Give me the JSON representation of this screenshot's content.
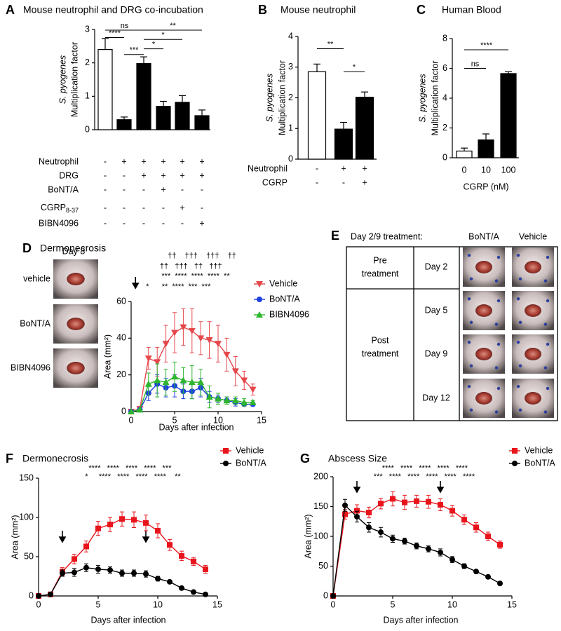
{
  "chart_data": [
    {
      "panel": "A",
      "type": "bar",
      "title": "Mouse neutrophil and DRG co-incubation",
      "ylabel": [
        "S. pyogenes",
        "Multiplication factor"
      ],
      "values": [
        2.4,
        0.3,
        1.98,
        0.7,
        0.82,
        0.42
      ],
      "errors": [
        0.33,
        0.08,
        0.2,
        0.15,
        0.2,
        0.17
      ],
      "colors": [
        "#ffffff",
        "#000000",
        "#000000",
        "#000000",
        "#000000",
        "#000000"
      ],
      "ylim": [
        0,
        3
      ],
      "yticks": [
        0,
        1,
        2,
        3
      ],
      "conditions": [
        {
          "label": "Neutrophil",
          "signs": [
            "-",
            "+",
            "+",
            "+",
            "+",
            "+"
          ]
        },
        {
          "label": "DRG",
          "signs": [
            "-",
            "-",
            "+",
            "+",
            "+",
            "+"
          ]
        },
        {
          "label": "BoNT/A",
          "signs": [
            "-",
            "-",
            "-",
            "+",
            "-",
            "-"
          ]
        },
        {
          "label": "CGRP",
          "label_sub": "8-37",
          "signs": [
            "-",
            "-",
            "-",
            "-",
            "+",
            "-"
          ]
        },
        {
          "label": "BIBN4096",
          "signs": [
            "-",
            "-",
            "-",
            "-",
            "-",
            "+"
          ]
        }
      ],
      "brackets": [
        {
          "from": 0,
          "to": 2,
          "y": 2.98,
          "label": "ns"
        },
        {
          "from": 0,
          "to": 1,
          "y": 2.76,
          "label": "****"
        },
        {
          "from": 2,
          "to": 5,
          "y": 2.98,
          "label": "**"
        },
        {
          "from": 2,
          "to": 4,
          "y": 2.7,
          "label": "*"
        },
        {
          "from": 2,
          "to": 3,
          "y": 2.42,
          "label": "*"
        },
        {
          "from": 1,
          "to": 2,
          "y": 2.25,
          "label": "***"
        }
      ]
    },
    {
      "panel": "B",
      "type": "bar",
      "title": "Mouse neutrophil",
      "ylabel": [
        "S. pyogenes",
        "Multiplication factor"
      ],
      "values": [
        2.85,
        0.98,
        2.02
      ],
      "errors": [
        0.25,
        0.22,
        0.17
      ],
      "colors": [
        "#ffffff",
        "#000000",
        "#000000"
      ],
      "ylim": [
        0,
        4
      ],
      "yticks": [
        0,
        1,
        2,
        3,
        4
      ],
      "conditions": [
        {
          "label": "Neutrophil",
          "signs": [
            "-",
            "+",
            "+"
          ]
        },
        {
          "label": "CGRP",
          "signs": [
            "-",
            "-",
            "+"
          ]
        }
      ],
      "brackets": [
        {
          "from": 0,
          "to": 1,
          "y": 3.6,
          "label": "**"
        },
        {
          "from": 1,
          "to": 2,
          "y": 2.85,
          "label": "*"
        }
      ]
    },
    {
      "panel": "C",
      "type": "bar",
      "title": "Human Blood",
      "ylabel": [
        "S. pyogenes",
        "Multiplication factor"
      ],
      "categories": [
        "0",
        "10",
        "100"
      ],
      "xlabel": "CGRP (nM)",
      "values": [
        0.45,
        1.2,
        5.65
      ],
      "errors": [
        0.2,
        0.4,
        0.12
      ],
      "colors": [
        "#ffffff",
        "#000000",
        "#000000"
      ],
      "ylim": [
        0,
        8
      ],
      "yticks": [
        0,
        2,
        4,
        6,
        8
      ],
      "brackets": [
        {
          "from": 0,
          "to": 1,
          "y": 6.0,
          "label": "ns"
        },
        {
          "from": 0,
          "to": 2,
          "y": 7.25,
          "label": "****"
        }
      ]
    },
    {
      "panel": "D",
      "type": "line",
      "title": "Dermonecrosis",
      "photo_header": "Day 8",
      "photo_labels": [
        "vehicle",
        "BoNT/A",
        "BIBN4096"
      ],
      "ylabel": [
        "Area (mm²)"
      ],
      "xlabel": "Days after infection",
      "x": [
        0,
        1,
        2,
        3,
        4,
        5,
        6,
        7,
        8,
        9,
        10,
        11,
        12,
        13,
        14
      ],
      "xlim": [
        0,
        15
      ],
      "xticks": [
        0,
        5,
        10,
        15
      ],
      "ylim": [
        0,
        60
      ],
      "yticks": [
        0,
        20,
        40,
        60
      ],
      "arrows": [
        0.5
      ],
      "series": [
        {
          "name": "Vehicle",
          "color": "#e5474b",
          "marker": "triangle-down",
          "values": [
            0,
            1.5,
            29,
            27,
            37,
            43,
            46,
            44,
            40,
            39,
            37,
            31,
            22,
            17,
            12
          ],
          "errors": [
            0,
            1,
            6,
            8,
            10,
            11,
            10,
            12,
            9,
            10,
            10,
            9,
            8,
            5,
            3
          ]
        },
        {
          "name": "BoNT/A",
          "color": "#1c3fe0",
          "marker": "circle",
          "values": [
            0,
            1,
            10,
            15,
            13,
            14,
            11,
            11,
            13,
            8,
            7,
            6,
            5,
            4,
            4
          ],
          "errors": [
            0,
            0.5,
            4,
            5,
            5,
            6,
            4,
            4,
            5,
            3,
            2,
            2,
            2,
            1,
            1
          ]
        },
        {
          "name": "BIBN4096",
          "color": "#2db52d",
          "marker": "triangle-up",
          "values": [
            0,
            1,
            15,
            17,
            16,
            19,
            17,
            16,
            16,
            8,
            7,
            6,
            6,
            5,
            5
          ],
          "errors": [
            0,
            0.5,
            6,
            9,
            7,
            8,
            7,
            9,
            7,
            6,
            3,
            2,
            2,
            2,
            1
          ]
        }
      ],
      "sig_rows": [
        {
          "x": 4.2,
          "text": "††    †††    †††    ††"
        },
        {
          "x": 3.3,
          "text": "††   †††   ††   †††"
        },
        {
          "x": 3.5,
          "text": "***  ****  ****  ****  **"
        },
        {
          "x": 1.7,
          "text": "*      **  ****  ***  ***"
        }
      ]
    },
    {
      "panel": "F",
      "type": "line",
      "title": "Dermonecrosis",
      "ylabel": [
        "Area (mm²)"
      ],
      "xlabel": "Days after infection",
      "x": [
        0,
        1,
        2,
        3,
        4,
        5,
        6,
        7,
        8,
        9,
        10,
        11,
        12,
        13,
        14
      ],
      "xlim": [
        0,
        15
      ],
      "xticks": [
        0,
        5,
        10,
        15
      ],
      "ylim": [
        0,
        150
      ],
      "yticks": [
        0,
        50,
        100,
        150
      ],
      "arrows": [
        2,
        9
      ],
      "series": [
        {
          "name": "Vehicle",
          "color": "#e8141c",
          "marker": "square",
          "values": [
            0,
            2,
            31,
            47,
            63,
            86,
            91,
            98,
            97,
            93,
            83,
            65,
            51,
            44,
            34
          ],
          "errors": [
            0,
            1,
            5,
            6,
            7,
            9,
            9,
            9,
            10,
            10,
            9,
            7,
            6,
            5,
            5
          ]
        },
        {
          "name": "BoNT/A",
          "color": "#000000",
          "marker": "circle",
          "values": [
            0,
            2,
            29,
            30,
            36,
            34,
            33,
            29,
            29,
            28,
            22,
            18,
            10,
            5,
            2
          ],
          "errors": [
            0,
            1,
            4,
            5,
            5,
            5,
            4,
            4,
            4,
            4,
            3,
            2,
            2,
            1,
            1
          ]
        }
      ],
      "sig_rows": [
        {
          "x": 4.2,
          "text": "****   ****   ****   ****   ***"
        },
        {
          "x": 3.9,
          "text": "*     ****   ****   ****   ****    **"
        }
      ]
    },
    {
      "panel": "G",
      "type": "line",
      "title": "Abscess Size",
      "ylabel": [
        "Area (mm²)"
      ],
      "xlabel": "Days after infection",
      "x": [
        0,
        1,
        2,
        3,
        4,
        5,
        6,
        7,
        8,
        9,
        10,
        11,
        12,
        13,
        14
      ],
      "xlim": [
        0,
        15
      ],
      "xticks": [
        0,
        5,
        10,
        15
      ],
      "ylim": [
        0,
        200
      ],
      "yticks": [
        0,
        50,
        100,
        150,
        200
      ],
      "arrows": [
        2,
        9
      ],
      "series": [
        {
          "name": "Vehicle",
          "color": "#e8141c",
          "marker": "square",
          "values": [
            0,
            137,
            143,
            140,
            155,
            163,
            157,
            159,
            158,
            153,
            143,
            128,
            115,
            100,
            86
          ],
          "errors": [
            0,
            8,
            10,
            9,
            9,
            12,
            12,
            10,
            11,
            10,
            9,
            8,
            8,
            7,
            6
          ]
        },
        {
          "name": "BoNT/A",
          "color": "#000000",
          "marker": "circle",
          "values": [
            0,
            152,
            133,
            115,
            107,
            96,
            92,
            84,
            79,
            73,
            61,
            50,
            41,
            32,
            21
          ],
          "errors": [
            0,
            10,
            9,
            8,
            8,
            6,
            5,
            5,
            5,
            6,
            5,
            4,
            3,
            3,
            3
          ]
        }
      ],
      "sig_rows": [
        {
          "x": 4.1,
          "text": "****   ****   ****   ****   ****"
        },
        {
          "x": 3.4,
          "text": "***   ****   ****   ****   ****   ****"
        }
      ]
    }
  ],
  "table_e": {
    "panel": "E",
    "header": [
      "Day 2/9 treatment:",
      "BoNT/A",
      "Vehicle"
    ],
    "groups": [
      {
        "label": [
          "Pre",
          "treatment"
        ],
        "days": [
          "Day 2"
        ]
      },
      {
        "label": [
          "Post",
          "treatment"
        ],
        "days": [
          "Day 5",
          "Day 9",
          "Day 12"
        ]
      }
    ]
  }
}
